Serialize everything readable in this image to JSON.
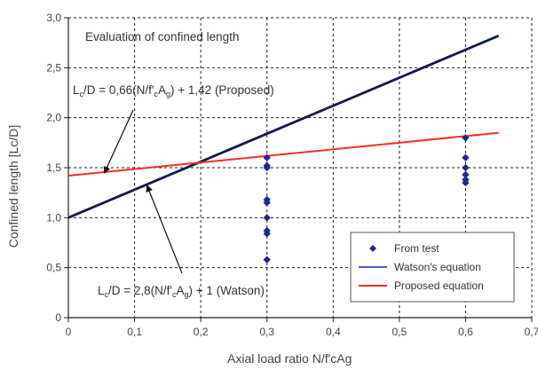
{
  "chart_data": {
    "type": "scatter",
    "title": "Evaluation of confined length",
    "xlabel": "Axial load ratio N/f'cAg",
    "ylabel": "Confined length [Lc/D]",
    "xlim": [
      0,
      0.7
    ],
    "ylim": [
      0,
      3.0
    ],
    "x_ticks": [
      "0",
      "0,1",
      "0,2",
      "0,3",
      "0,4",
      "0,5",
      "0,6",
      "0,7"
    ],
    "y_ticks": [
      "0",
      "0,5",
      "1,0",
      "1,5",
      "2,0",
      "2,5",
      "3,0"
    ],
    "grid": true,
    "legend_position": "bottom-right",
    "series": [
      {
        "name": "From test",
        "kind": "scatter",
        "color": "#1f2a8a",
        "x": [
          0.3,
          0.3,
          0.3,
          0.3,
          0.3,
          0.3,
          0.3,
          0.3,
          0.3,
          0.6,
          0.6,
          0.6,
          0.6,
          0.6,
          0.6
        ],
        "y": [
          1.6,
          1.52,
          1.5,
          1.18,
          1.15,
          1.0,
          0.87,
          0.84,
          0.58,
          1.8,
          1.6,
          1.5,
          1.43,
          1.38,
          1.35
        ]
      },
      {
        "name": "Watson's equation",
        "kind": "line",
        "color": "#141a4a",
        "legend_color": "#4a5fd0",
        "x": [
          0,
          0.65
        ],
        "y": [
          1.0,
          2.82
        ]
      },
      {
        "name": "Proposed equation",
        "kind": "line",
        "color": "#ff2a2a",
        "x": [
          0,
          0.65
        ],
        "y": [
          1.42,
          1.849
        ]
      }
    ],
    "annotations": {
      "proposed_eq": {
        "lc": "L",
        "lc_sub": "c",
        "mid": "/D = 0,66(N/f'",
        "c_sub": "c",
        "a": "A",
        "g_sub": "g",
        "tail": ") + 1,42 (Proposed)"
      },
      "watson_eq": {
        "lc": "L",
        "lc_sub": "c",
        "mid": "/D = 2,8(N/f'",
        "c_sub": "c",
        "a": "A",
        "g_sub": "g",
        "tail": ") + 1 (Watson)"
      }
    }
  }
}
